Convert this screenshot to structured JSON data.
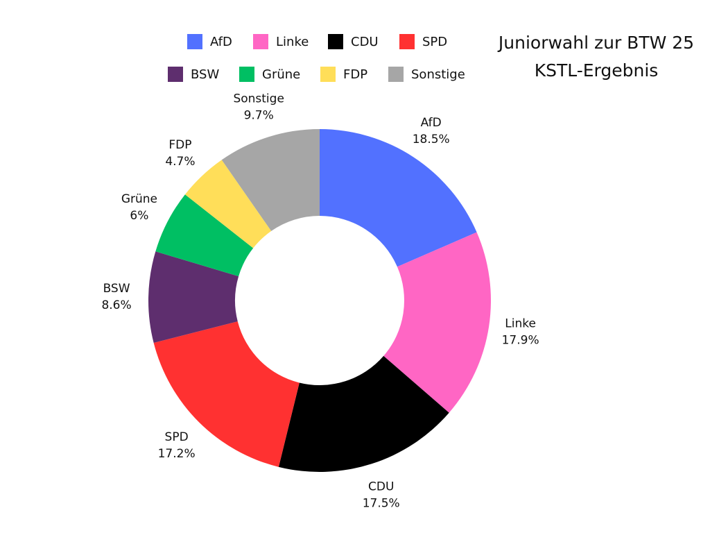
{
  "chart_data": {
    "type": "pie",
    "variant": "donut",
    "title": "Juniorwahl zur BTW 25",
    "subtitle": "KSTL-Ergebnis",
    "legend_position": "top",
    "slices": [
      {
        "label": "AfD",
        "value": 18.5,
        "value_label": "18.5%",
        "color": "#5271ff"
      },
      {
        "label": "Linke",
        "value": 17.9,
        "value_label": "17.9%",
        "color": "#ff66c4"
      },
      {
        "label": "CDU",
        "value": 17.5,
        "value_label": "17.5%",
        "color": "#000000"
      },
      {
        "label": "SPD",
        "value": 17.2,
        "value_label": "17.2%",
        "color": "#ff3131"
      },
      {
        "label": "BSW",
        "value": 8.6,
        "value_label": "8.6%",
        "color": "#5e2e6e"
      },
      {
        "label": "Grüne",
        "value": 6,
        "value_label": "6%",
        "color": "#00bf63"
      },
      {
        "label": "FDP",
        "value": 4.7,
        "value_label": "4.7%",
        "color": "#ffde59"
      },
      {
        "label": "Sonstige",
        "value": 9.7,
        "value_label": "9.7%",
        "color": "#a6a6a6"
      }
    ]
  },
  "legend": {
    "items": [
      {
        "label": "AfD",
        "color": "#5271ff"
      },
      {
        "label": "Linke",
        "color": "#ff66c4"
      },
      {
        "label": "CDU",
        "color": "#000000"
      },
      {
        "label": "SPD",
        "color": "#ff3131"
      },
      {
        "label": "BSW",
        "color": "#5e2e6e"
      },
      {
        "label": "Grüne",
        "color": "#00bf63"
      },
      {
        "label": "FDP",
        "color": "#ffde59"
      },
      {
        "label": "Sonstige",
        "color": "#a6a6a6"
      }
    ]
  }
}
